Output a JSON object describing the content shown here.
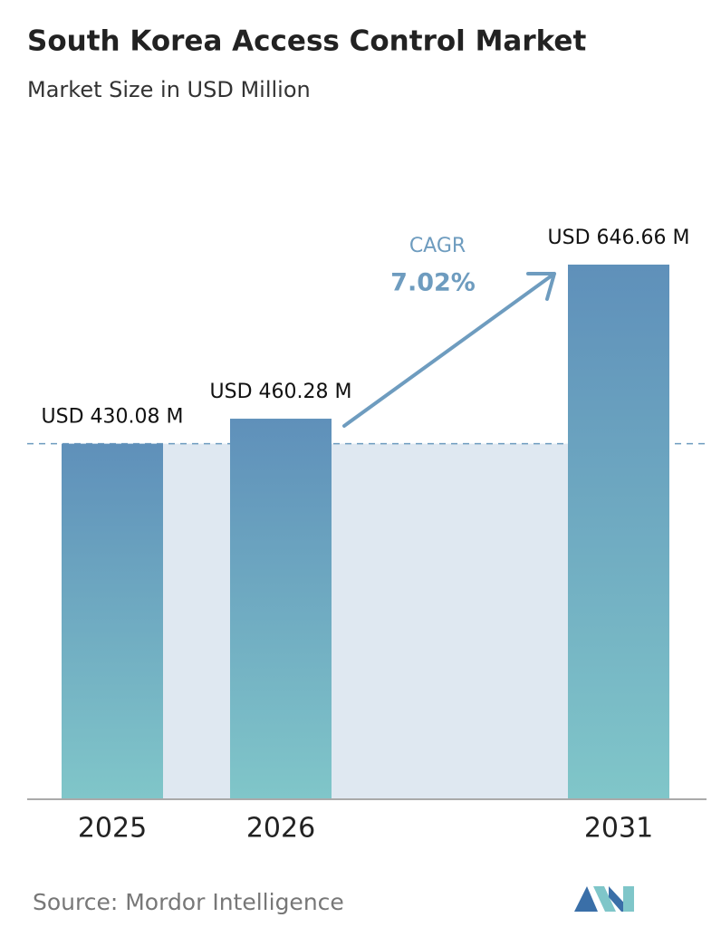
{
  "chart_data": {
    "type": "bar",
    "title": "South Korea Access Control Market",
    "subtitle": "Market Size in USD Million",
    "categories": [
      "2025",
      "2026",
      "2031"
    ],
    "values": [
      430.08,
      460.28,
      646.66
    ],
    "value_labels": [
      "USD 430.08 M",
      "USD 460.28 M",
      "USD 646.66 M"
    ],
    "color": "#5f90ba",
    "color_bottom": "#80c6c9",
    "annotation": {
      "label": "CAGR",
      "value": "7.02%"
    },
    "source": "Source:  Mordor Intelligence"
  }
}
